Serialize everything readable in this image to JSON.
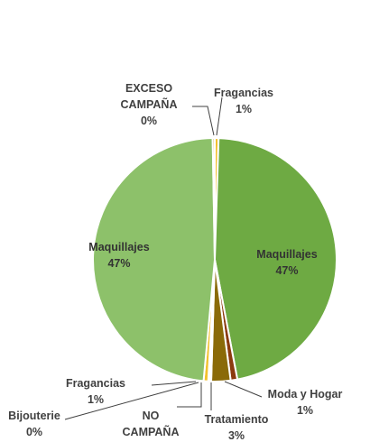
{
  "chart_data": {
    "type": "pie",
    "title": "",
    "slices": [
      {
        "label": "Fragancias",
        "value": 1,
        "value_label": "1%",
        "color": "#F2C12E"
      },
      {
        "label": "Maquillajes",
        "value": 47,
        "value_label": "47%",
        "color": "#6EAA43"
      },
      {
        "label": "Moda y Hogar",
        "value": 1,
        "value_label": "1%",
        "color": "#8B3A0E"
      },
      {
        "label": "Tratamiento",
        "value": 3,
        "value_label": "3%",
        "color": "#8A6A08"
      },
      {
        "label": "NO CAMPAÑA",
        "value": 0,
        "value_label": "",
        "color": "#5E4A0A"
      },
      {
        "label": "Bijouterie",
        "value": 0,
        "value_label": "0%",
        "color": "#C9A12E"
      },
      {
        "label": "Fragancias",
        "value": 1,
        "value_label": "1%",
        "color": "#F2C12E"
      },
      {
        "label": "Maquillajes",
        "value": 47,
        "value_label": "47%",
        "color": "#8DC16A"
      },
      {
        "label": "EXCESO CAMPAÑA",
        "value": 0,
        "value_label": "0%",
        "color": "#C9A12E"
      }
    ]
  }
}
